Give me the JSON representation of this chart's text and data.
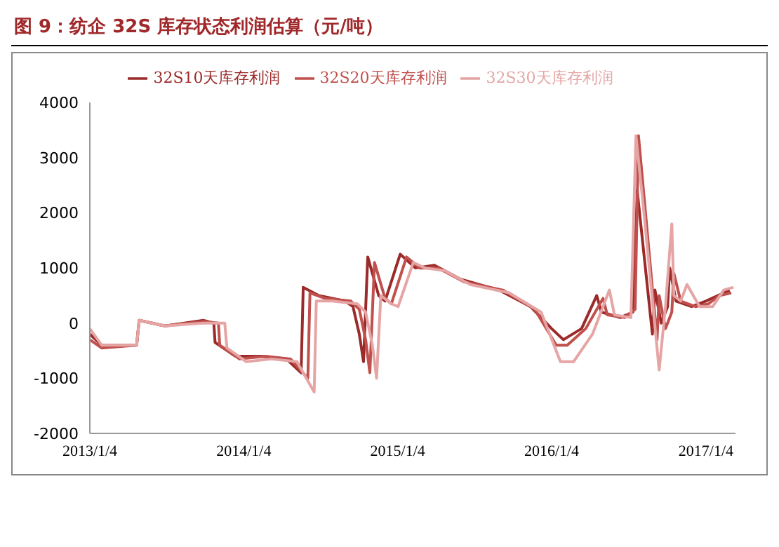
{
  "chart_data": {
    "type": "line",
    "title": "图 9：纺企 32S 库存状态利润估算（元/吨）",
    "xlim": [
      "2013-01-04",
      "2017-03-15"
    ],
    "xticks": [
      {
        "value": "2013-01-04",
        "label": "2013/1/4"
      },
      {
        "value": "2014-01-04",
        "label": "2014/1/4"
      },
      {
        "value": "2015-01-04",
        "label": "2015/1/4"
      },
      {
        "value": "2016-01-04",
        "label": "2016/1/4"
      },
      {
        "value": "2017-01-04",
        "label": "2017/1/4"
      }
    ],
    "ylim": [
      -2000,
      4000
    ],
    "yticks": [
      -2000,
      -1000,
      0,
      1000,
      2000,
      3000,
      4000
    ],
    "legend": "top",
    "marker": "none",
    "line_style": "solid",
    "series": [
      {
        "name": "32S10天库存利润",
        "color": "#9b2a2a",
        "x": [
          "2013-01-04",
          "2013-02-01",
          "2013-04-25",
          "2013-05-01",
          "2013-07-01",
          "2013-10-01",
          "2013-10-25",
          "2013-10-28",
          "2013-12-15",
          "2014-02-15",
          "2014-04-15",
          "2014-05-20",
          "2014-05-25",
          "2014-07-01",
          "2014-09-01",
          "2014-09-20",
          "2014-10-05",
          "2014-10-15",
          "2014-10-25",
          "2014-11-20",
          "2014-12-05",
          "2015-01-10",
          "2015-02-15",
          "2015-04-01",
          "2015-06-01",
          "2015-09-01",
          "2015-11-15",
          "2016-01-04",
          "2016-02-01",
          "2016-03-15",
          "2016-04-20",
          "2016-05-01",
          "2016-06-15",
          "2016-07-15",
          "2016-07-25",
          "2016-08-30",
          "2016-09-05",
          "2016-09-20",
          "2016-10-05",
          "2016-10-10",
          "2016-10-25",
          "2016-12-01",
          "2017-01-04",
          "2017-02-01",
          "2017-03-01"
        ],
        "values": [
          -200,
          -400,
          -400,
          50,
          -50,
          50,
          0,
          -350,
          -600,
          -600,
          -650,
          -900,
          650,
          500,
          400,
          300,
          -200,
          -700,
          1200,
          500,
          400,
          1250,
          1000,
          1050,
          800,
          600,
          300,
          -100,
          -300,
          -100,
          500,
          200,
          100,
          200,
          2400,
          -200,
          600,
          0,
          300,
          1000,
          400,
          300,
          400,
          500,
          600
        ]
      },
      {
        "name": "32S20天库存利润",
        "color": "#c0504d",
        "x": [
          "2013-01-04",
          "2013-02-01",
          "2013-04-25",
          "2013-05-01",
          "2013-07-01",
          "2013-10-01",
          "2013-11-05",
          "2013-11-08",
          "2013-12-25",
          "2014-02-25",
          "2014-04-25",
          "2014-06-05",
          "2014-06-10",
          "2014-07-15",
          "2014-09-15",
          "2014-10-05",
          "2014-10-20",
          "2014-10-30",
          "2014-11-10",
          "2014-12-05",
          "2014-12-20",
          "2015-01-25",
          "2015-02-25",
          "2015-04-10",
          "2015-06-10",
          "2015-09-10",
          "2015-11-25",
          "2016-01-15",
          "2016-02-10",
          "2016-03-25",
          "2016-05-05",
          "2016-05-15",
          "2016-06-25",
          "2016-07-20",
          "2016-07-28",
          "2016-09-10",
          "2016-09-15",
          "2016-09-30",
          "2016-10-15",
          "2016-10-20",
          "2016-11-05",
          "2016-12-10",
          "2017-01-10",
          "2017-02-05",
          "2017-03-05"
        ],
        "values": [
          -300,
          -450,
          -400,
          50,
          -50,
          30,
          0,
          -400,
          -650,
          -600,
          -650,
          -1000,
          550,
          450,
          400,
          250,
          -300,
          -900,
          1100,
          450,
          350,
          1200,
          1000,
          1000,
          750,
          600,
          250,
          -400,
          -400,
          -100,
          450,
          150,
          100,
          250,
          3400,
          -300,
          500,
          -100,
          200,
          900,
          400,
          300,
          350,
          500,
          550
        ]
      },
      {
        "name": "32S30天库存利润",
        "color": "#e6a5a5",
        "x": [
          "2013-01-04",
          "2013-02-01",
          "2013-04-25",
          "2013-05-01",
          "2013-07-01",
          "2013-10-01",
          "2013-11-20",
          "2013-11-25",
          "2014-01-10",
          "2014-03-10",
          "2014-05-10",
          "2014-06-20",
          "2014-06-25",
          "2014-08-01",
          "2014-09-30",
          "2014-10-20",
          "2014-11-05",
          "2014-11-15",
          "2014-11-25",
          "2014-12-20",
          "2015-01-05",
          "2015-02-10",
          "2015-03-10",
          "2015-04-25",
          "2015-06-25",
          "2015-09-25",
          "2015-12-10",
          "2016-01-25",
          "2016-02-25",
          "2016-04-10",
          "2016-05-20",
          "2016-06-01",
          "2016-07-10",
          "2016-07-22",
          "2016-08-10",
          "2016-09-15",
          "2016-09-30",
          "2016-10-15",
          "2016-10-20",
          "2016-11-05",
          "2016-11-20",
          "2016-12-20",
          "2017-01-20",
          "2017-02-15",
          "2017-03-10"
        ],
        "values": [
          -100,
          -400,
          -400,
          50,
          -50,
          0,
          0,
          -450,
          -700,
          -650,
          -700,
          -1250,
          400,
          400,
          350,
          200,
          -400,
          -1000,
          500,
          350,
          300,
          1100,
          1000,
          950,
          700,
          550,
          200,
          -700,
          -700,
          -200,
          600,
          150,
          100,
          3400,
          2000,
          -850,
          300,
          1800,
          500,
          400,
          700,
          300,
          300,
          600,
          650
        ]
      }
    ]
  }
}
